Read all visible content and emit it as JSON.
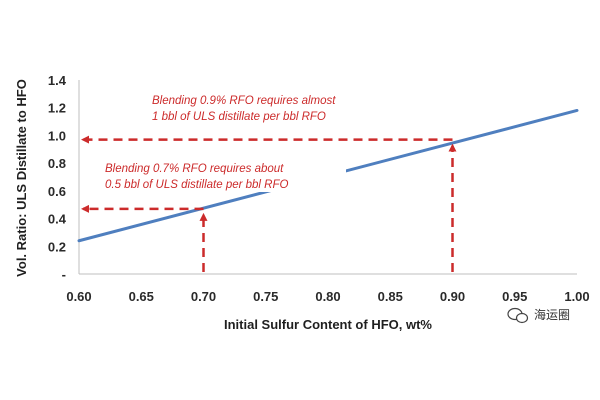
{
  "chart_data": {
    "type": "line",
    "xlabel": "Initial Sulfur Content of HFO, wt%",
    "ylabel": "Vol. Ratio: ULS Distillate to HFO",
    "xlim": [
      0.6,
      1.0
    ],
    "ylim": [
      0,
      1.4
    ],
    "x_ticks": [
      "0.60",
      "0.65",
      "0.70",
      "0.75",
      "0.80",
      "0.85",
      "0.90",
      "0.95",
      "1.00"
    ],
    "y_ticks": [
      "-",
      "0.2",
      "0.4",
      "0.6",
      "0.8",
      "1.0",
      "1.2",
      "1.4"
    ],
    "grid": "none",
    "series": [
      {
        "color": "#4f7fbf",
        "x": [
          0.6,
          1.0
        ],
        "y": [
          0.24,
          1.18
        ]
      }
    ],
    "annotations": [
      {
        "line1": "Blending 0.9% RFO requires almost",
        "line2": "1 bbl of ULS distillate per bbl RFO",
        "x": 0.9,
        "y": 0.97
      },
      {
        "line1": "Blending 0.7% RFO requires about",
        "line2": "0.5 bbl of ULS distillate per bbl RFO",
        "x": 0.7,
        "y": 0.47
      }
    ],
    "annotation_color": "#cc2b2b"
  },
  "watermark": {
    "text": "海运圈",
    "icon": "wechat-icon"
  }
}
